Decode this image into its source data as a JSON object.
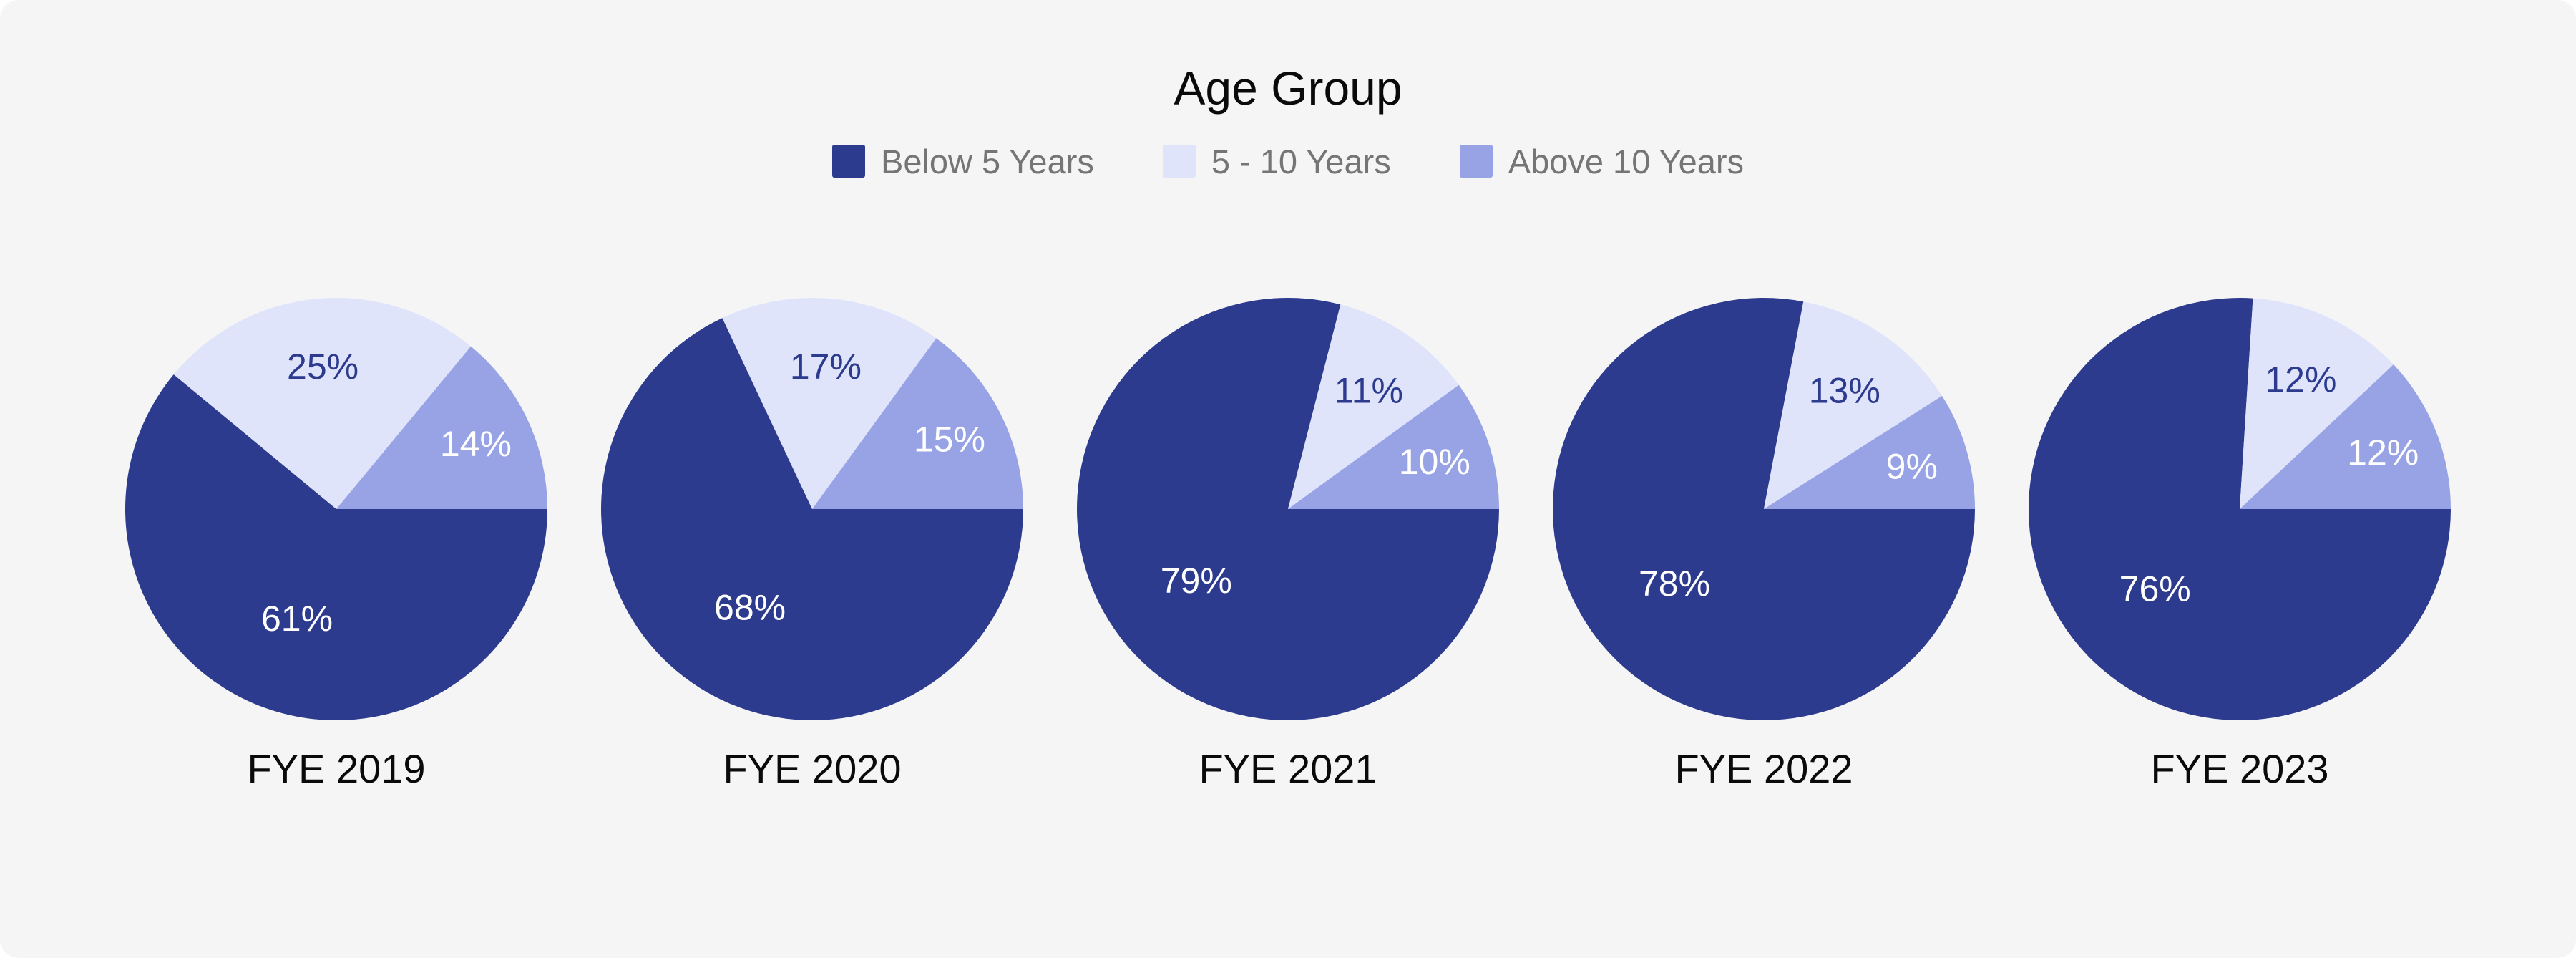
{
  "chart_data": {
    "type": "pie",
    "title": "Age Group",
    "legend_position": "top",
    "direction": "clockwise",
    "start_angle": "east",
    "value_format": "percent",
    "background_color": "#f5f5f6",
    "series": [
      {
        "name": "Below 5 Years",
        "color": "#2d3b8f",
        "label_color": "#ffffff"
      },
      {
        "name": "5 - 10 Years",
        "color": "#dfe4fa",
        "label_color": "#2d3b8f"
      },
      {
        "name": "Above 10 Years",
        "color": "#97a3e4",
        "label_color": "#ffffff"
      }
    ],
    "pies": [
      {
        "category": "FYE 2019",
        "values": [
          61,
          25,
          14
        ]
      },
      {
        "category": "FYE 2020",
        "values": [
          68,
          17,
          15
        ]
      },
      {
        "category": "FYE 2021",
        "values": [
          79,
          11,
          10
        ]
      },
      {
        "category": "FYE 2022",
        "values": [
          78,
          13,
          9
        ]
      },
      {
        "category": "FYE 2023",
        "values": [
          76,
          12,
          12
        ]
      }
    ]
  }
}
